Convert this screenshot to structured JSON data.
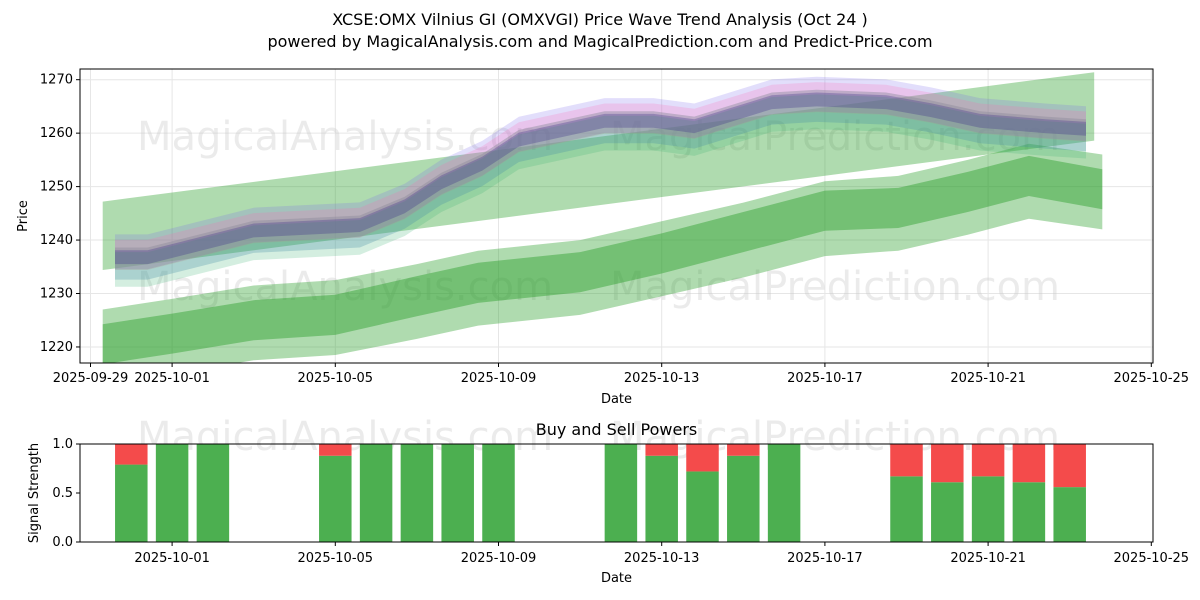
{
  "title_line1": "XCSE:OMX Vilnius GI (OMXVGI) Price Wave Trend Analysis (Oct 24 )",
  "title_line2": "powered by MagicalAnalysis.com and MagicalPrediction.com and Predict-Price.com",
  "watermarks": [
    "MagicalAnalysis.com",
    "MagicalPrediction.com"
  ],
  "chart_data": [
    {
      "type": "area",
      "title": "",
      "xlabel": "Date",
      "ylabel": "Price",
      "x_ticks": [
        "2025-09-29",
        "2025-10-01",
        "2025-10-05",
        "2025-10-09",
        "2025-10-13",
        "2025-10-17",
        "2025-10-21",
        "2025-10-25"
      ],
      "ylim": [
        1217,
        1272
      ],
      "y_ticks": [
        1220,
        1230,
        1240,
        1250,
        1260,
        1270
      ],
      "grid": true,
      "price_path": {
        "days": [
          0.6,
          1.4,
          4,
          6.6,
          7.7,
          8.6,
          9.6,
          10.5,
          12.6,
          13.8,
          14.8,
          16.7,
          17.8,
          19.5,
          20.6,
          21.8,
          23.4,
          24.4
        ],
        "values": [
          1236.5,
          1236.5,
          1241.5,
          1242.5,
          1246,
          1250.5,
          1254,
          1258.5,
          1262,
          1262,
          1261,
          1265.5,
          1266,
          1265.5,
          1264,
          1262,
          1261,
          1260.5
        ]
      },
      "bands": [
        {
          "name": "upper envelope",
          "days": [
            0.3,
            24.6
          ],
          "center": [
            1240.8,
            1265
          ],
          "width": 12.8,
          "color": "#2ca02c"
        },
        {
          "name": "lower channel",
          "days": [
            0.3,
            2,
            4,
            6,
            8,
            9.5,
            12,
            14,
            16,
            18,
            19.8,
            21.5,
            23,
            24.8
          ],
          "center": [
            1220,
            1222,
            1224.5,
            1225.5,
            1228.5,
            1231,
            1233,
            1236.5,
            1240,
            1244,
            1245,
            1248,
            1251,
            1249
          ],
          "width": 14,
          "color": "#2ca02c"
        },
        {
          "name": "lower channel core",
          "days": [
            0.3,
            2,
            4,
            6,
            8,
            9.5,
            12,
            14,
            16,
            18,
            19.8,
            21.5,
            23,
            24.8
          ],
          "center": [
            1220.5,
            1222.5,
            1225,
            1226,
            1229.5,
            1232,
            1234,
            1237.5,
            1241.5,
            1245.5,
            1246,
            1249,
            1252,
            1249.5
          ],
          "width": 7.5,
          "color": "#2ca02c"
        }
      ]
    },
    {
      "type": "bar",
      "title": "Buy and Sell Powers",
      "xlabel": "Date",
      "ylabel": "Signal Strength",
      "x_ticks": [
        "2025-10-01",
        "2025-10-05",
        "2025-10-09",
        "2025-10-13",
        "2025-10-17",
        "2025-10-21",
        "2025-10-25"
      ],
      "ylim": [
        0,
        1
      ],
      "y_ticks": [
        "0.0",
        "0.5",
        "1.0"
      ],
      "days": [
        1,
        2,
        3,
        6,
        7,
        8,
        9,
        10,
        13,
        14,
        15,
        16,
        17,
        20,
        21,
        22,
        23,
        24
      ],
      "buy": [
        0.79,
        1.0,
        1.0,
        0.88,
        1.0,
        1.0,
        1.0,
        1.0,
        1.0,
        0.88,
        0.72,
        0.88,
        1.0,
        0.67,
        0.61,
        0.67,
        0.61,
        0.56
      ],
      "series_colors": {
        "buy": "#4caf50",
        "sell": "#f44b4b"
      }
    }
  ]
}
